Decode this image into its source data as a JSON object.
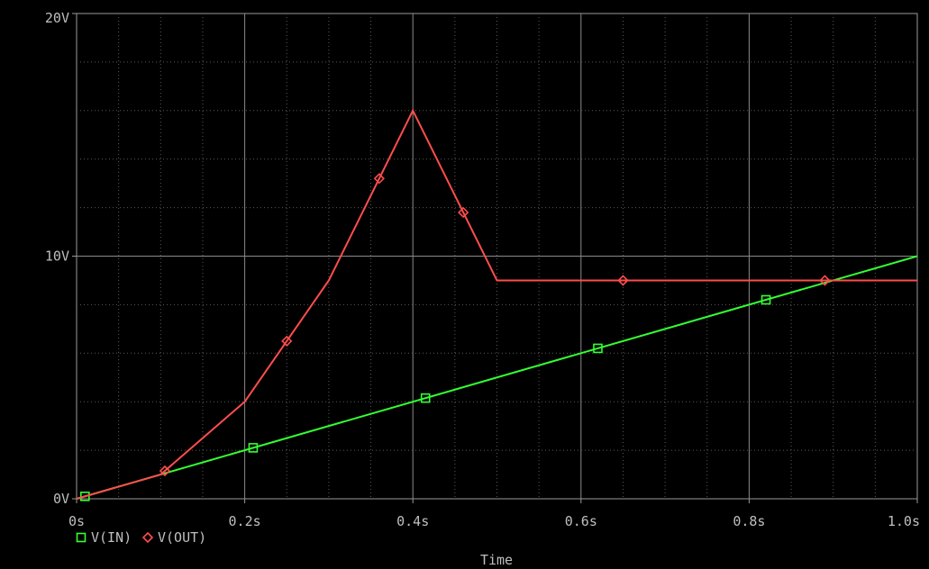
{
  "chart_data": {
    "type": "line",
    "title": "",
    "xlabel": "Time",
    "ylabel": "",
    "xlim": [
      0,
      1.0
    ],
    "ylim": [
      0,
      20
    ],
    "grid": true,
    "legend_placement": "bottom-left",
    "x_ticks": [
      {
        "value": 0,
        "label": "0s"
      },
      {
        "value": 0.2,
        "label": "0.2s"
      },
      {
        "value": 0.4,
        "label": "0.4s"
      },
      {
        "value": 0.6,
        "label": "0.6s"
      },
      {
        "value": 0.8,
        "label": "0.8s"
      },
      {
        "value": 1.0,
        "label": "1.0s"
      }
    ],
    "y_ticks": [
      {
        "value": 0,
        "label": "0V"
      },
      {
        "value": 10,
        "label": "10V"
      },
      {
        "value": 20,
        "label": "20V"
      }
    ],
    "series": [
      {
        "name": "V(IN)",
        "color": "#33ff33",
        "marker": "square",
        "x": [
          0,
          1.0
        ],
        "y": [
          0,
          10
        ],
        "marker_x": [
          0.01,
          0.21,
          0.415,
          0.62,
          0.82
        ]
      },
      {
        "name": "V(OUT)",
        "color": "#ff4d4d",
        "marker": "diamond",
        "x": [
          0,
          0.1,
          0.2,
          0.3,
          0.4,
          0.5,
          1.0
        ],
        "y": [
          0,
          1.0,
          4.0,
          9.0,
          16.0,
          9.0,
          9.0
        ],
        "marker_x": [
          0.105,
          0.25,
          0.36,
          0.46,
          0.65,
          0.89
        ]
      }
    ]
  }
}
